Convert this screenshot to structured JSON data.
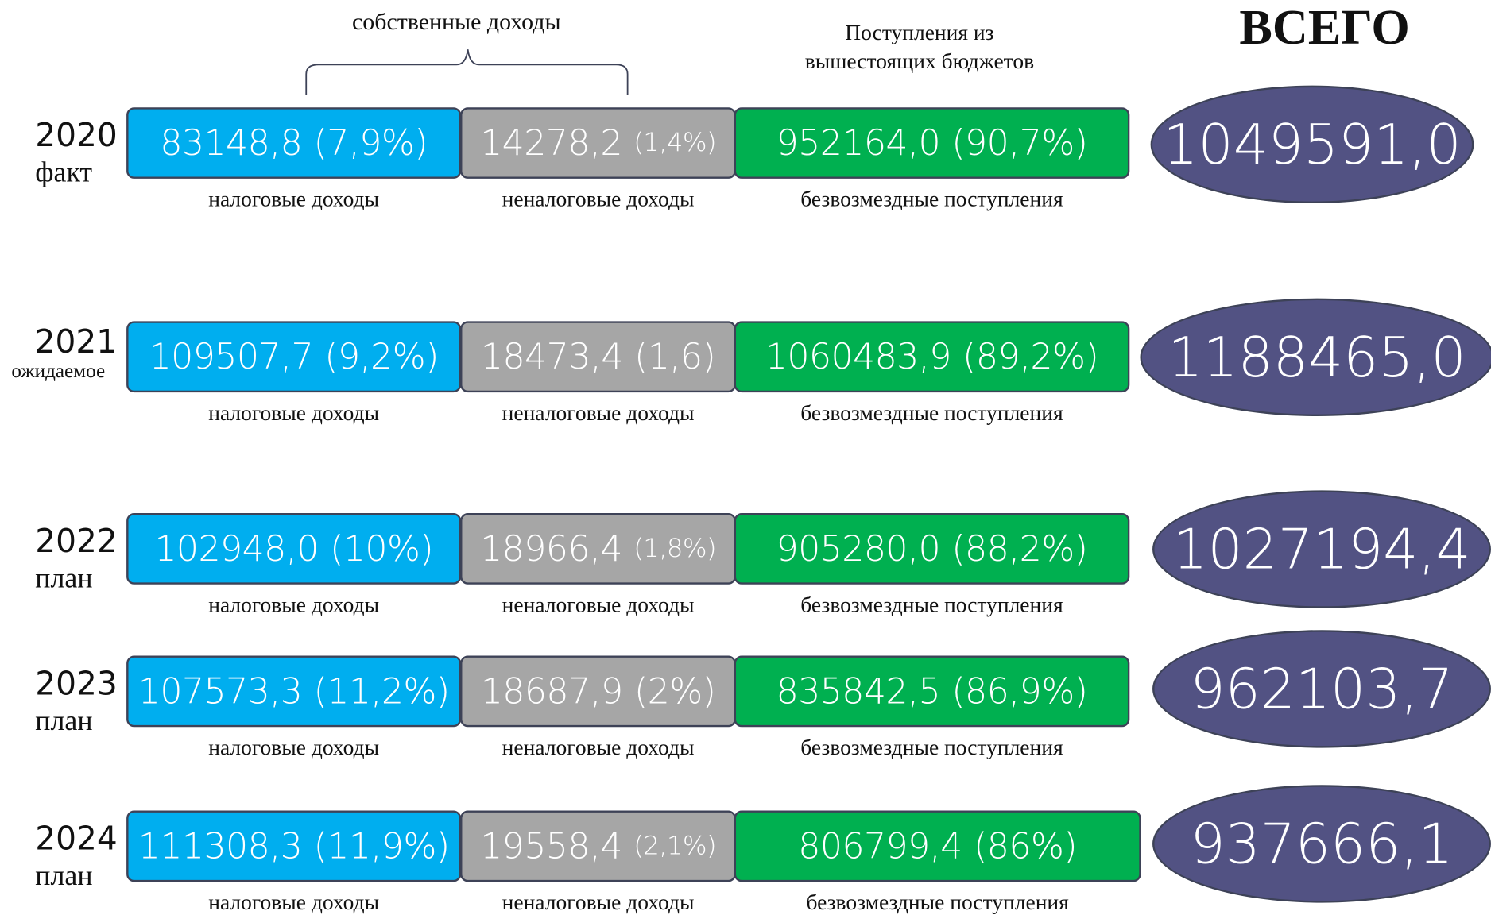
{
  "header": {
    "own_income": "собственные доходы",
    "transfers": [
      "Поступления из",
      "вышестоящих бюджетов"
    ],
    "total": "ВСЕГО"
  },
  "rows": [
    {
      "year": "2020",
      "kind": "факт",
      "tax": "83148,8",
      "tax_pct": "(7,9%)",
      "nontax": "14278,2",
      "nontax_pct": "(1,4%)",
      "gratuitous": "952164,0",
      "gratuitous_pct": "(90,7%)",
      "total": "1049591,0",
      "tax_label": "налоговые доходы",
      "nontax_label": "неналоговые доходы",
      "gratuitous_label": "безвозмездные поступления"
    },
    {
      "year": "2021",
      "kind": "ожидаемое",
      "tax": "109507,7",
      "tax_pct": "(9,2%)",
      "nontax": "18473,4",
      "nontax_pct": "(1,6)",
      "gratuitous": "1060483,9",
      "gratuitous_pct": "(89,2%)",
      "total": "1188465,0",
      "tax_label": "налоговые доходы",
      "nontax_label": "неналоговые доходы",
      "gratuitous_label": "безвозмездные поступления"
    },
    {
      "year": "2022",
      "kind": "план",
      "tax": "102948,0",
      "tax_pct": "(10%)",
      "nontax": "18966,4",
      "nontax_pct": "(1,8%)",
      "gratuitous": "905280,0",
      "gratuitous_pct": "(88,2%)",
      "total": "1027194,4",
      "tax_label": "налоговые доходы",
      "nontax_label": "неналоговые доходы",
      "gratuitous_label": "безвозмездные поступления"
    },
    {
      "year": "2023",
      "kind": "план",
      "tax": "107573,3",
      "tax_pct": "(11,2%)",
      "nontax": "18687,9",
      "nontax_pct": "(2%)",
      "gratuitous": "835842,5",
      "gratuitous_pct": "(86,9%)",
      "total": "962103,7",
      "tax_label": "налоговые доходы",
      "nontax_label": "неналоговые доходы",
      "gratuitous_label": "безвозмездные поступления"
    },
    {
      "year": "2024",
      "kind": "план",
      "tax": "111308,3",
      "tax_pct": "(11,9%)",
      "nontax": "19558,4",
      "nontax_pct": "(2,1%)",
      "gratuitous": "806799,4",
      "gratuitous_pct": "(86%)",
      "total": "937666,1",
      "tax_label": "налоговые доходы",
      "nontax_label": "неналоговые доходы",
      "gratuitous_label": "безвозмездные поступления"
    }
  ]
}
